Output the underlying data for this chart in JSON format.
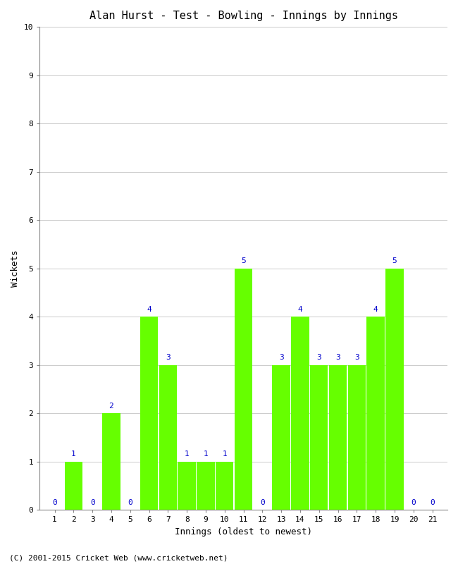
{
  "title": "Alan Hurst - Test - Bowling - Innings by Innings",
  "xlabel": "Innings (oldest to newest)",
  "ylabel": "Wickets",
  "innings": [
    1,
    2,
    3,
    4,
    5,
    6,
    7,
    8,
    9,
    10,
    11,
    12,
    13,
    14,
    15,
    16,
    17,
    18,
    19,
    20,
    21
  ],
  "values": [
    0,
    1,
    0,
    2,
    0,
    4,
    3,
    1,
    1,
    1,
    5,
    0,
    3,
    4,
    3,
    3,
    3,
    4,
    5,
    0,
    0
  ],
  "bar_color": "#66FF00",
  "label_color": "#0000CC",
  "background_color": "#FFFFFF",
  "grid_color": "#CCCCCC",
  "ylim": [
    0,
    10
  ],
  "yticks": [
    0,
    1,
    2,
    3,
    4,
    5,
    6,
    7,
    8,
    9,
    10
  ],
  "title_fontsize": 11,
  "axis_label_fontsize": 9,
  "tick_fontsize": 8,
  "bar_label_fontsize": 8,
  "bar_width": 0.95,
  "footer": "(C) 2001-2015 Cricket Web (www.cricketweb.net)"
}
